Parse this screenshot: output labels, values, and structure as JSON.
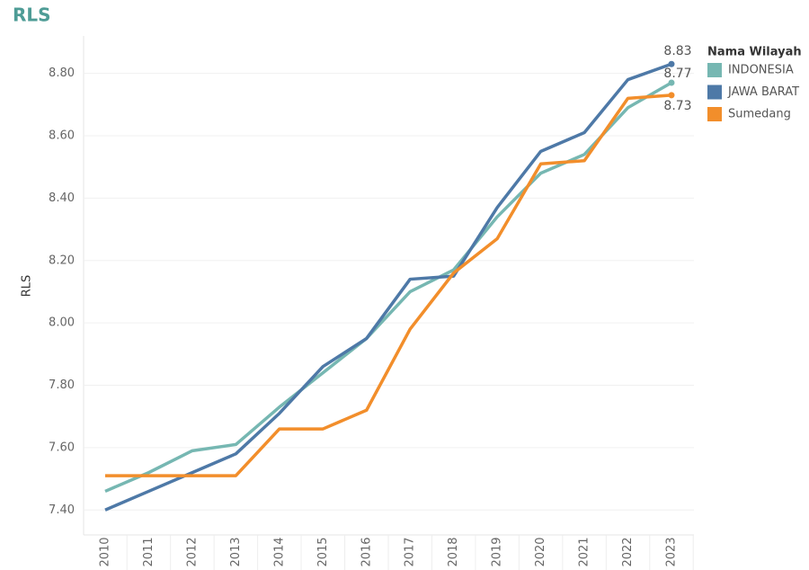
{
  "chart_data": {
    "type": "line",
    "title": "RLS",
    "y_label": "RLS",
    "legend_title": "Nama Wilayah",
    "categories": [
      "2010",
      "2011",
      "2012",
      "2013",
      "2014",
      "2015",
      "2016",
      "2017",
      "2018",
      "2019",
      "2020",
      "2021",
      "2022",
      "2023"
    ],
    "series": [
      {
        "name": "INDONESIA",
        "color": "#76b7b2",
        "values": [
          7.46,
          7.52,
          7.59,
          7.61,
          7.73,
          7.84,
          7.95,
          8.1,
          8.17,
          8.34,
          8.48,
          8.54,
          8.69,
          8.77
        ]
      },
      {
        "name": "JAWA BARAT",
        "color": "#4e79a7",
        "values": [
          7.4,
          7.46,
          7.52,
          7.58,
          7.71,
          7.86,
          7.95,
          8.14,
          8.15,
          8.37,
          8.55,
          8.61,
          8.78,
          8.83
        ]
      },
      {
        "name": "Sumedang",
        "color": "#f28e2b",
        "values": [
          7.51,
          7.51,
          7.51,
          7.51,
          7.66,
          7.66,
          7.72,
          7.98,
          8.16,
          8.27,
          8.51,
          8.52,
          8.72,
          8.73
        ]
      }
    ],
    "ylim": [
      7.32,
      8.92
    ],
    "yticks": [
      {
        "value": 7.4,
        "label": "7.40"
      },
      {
        "value": 7.6,
        "label": "7.60"
      },
      {
        "value": 7.8,
        "label": "7.80"
      },
      {
        "value": 8.0,
        "label": "8.00"
      },
      {
        "value": 8.2,
        "label": "8.20"
      },
      {
        "value": 8.4,
        "label": "8.40"
      },
      {
        "value": 8.6,
        "label": "8.60"
      },
      {
        "value": 8.8,
        "label": "8.80"
      }
    ],
    "grid": true,
    "legend_position": "right"
  }
}
